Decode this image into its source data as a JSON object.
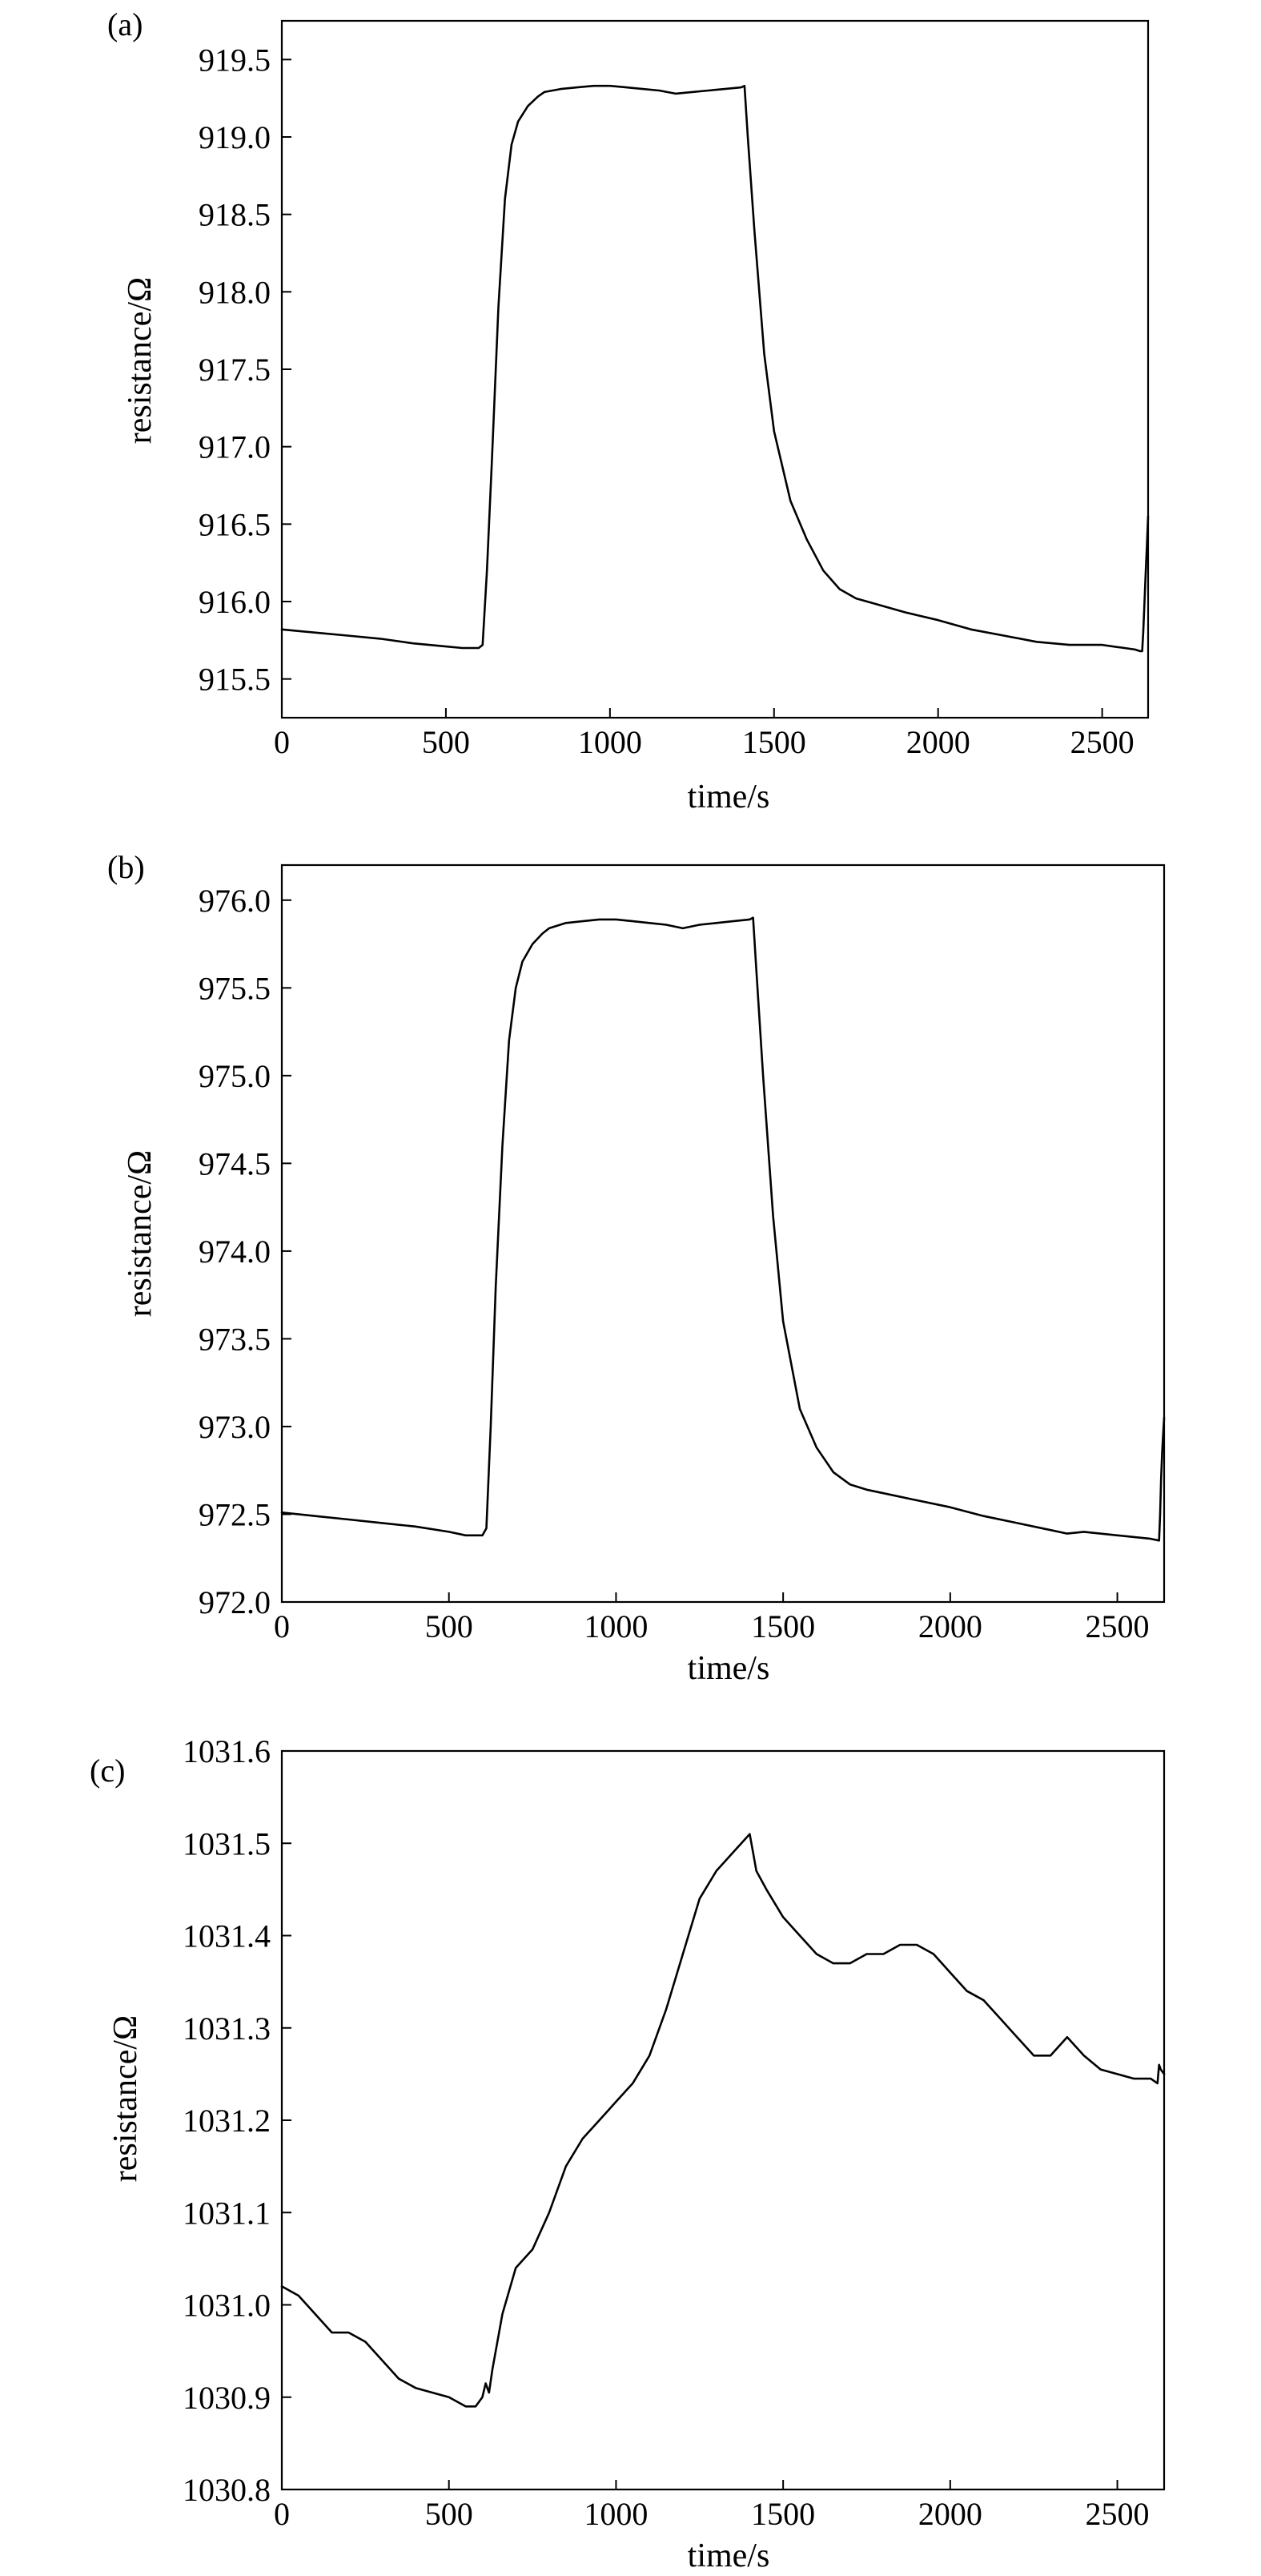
{
  "chart_data": [
    {
      "type": "line",
      "panel_label": "(a)",
      "xlabel": "time/s",
      "ylabel": "resistance/Ω",
      "xlim": [
        0,
        2640
      ],
      "ylim": [
        915.25,
        919.75
      ],
      "xticks": [
        0,
        500,
        1000,
        1500,
        2000,
        2500
      ],
      "yticks": [
        915.5,
        916.0,
        916.5,
        917.0,
        917.5,
        918.0,
        918.5,
        919.0,
        919.5
      ],
      "tick_decimals": 1,
      "grid": false,
      "series": [
        {
          "color": "#000000",
          "x": [
            0,
            100,
            200,
            300,
            400,
            500,
            550,
            600,
            612,
            625,
            640,
            660,
            680,
            700,
            720,
            750,
            780,
            800,
            850,
            900,
            950,
            1000,
            1050,
            1100,
            1150,
            1200,
            1250,
            1300,
            1350,
            1400,
            1410,
            1420,
            1440,
            1470,
            1500,
            1550,
            1600,
            1650,
            1700,
            1750,
            1800,
            1900,
            2000,
            2100,
            2200,
            2300,
            2400,
            2500,
            2600,
            2615,
            2622,
            2625,
            2628,
            2631,
            2634,
            2636,
            2638,
            2640
          ],
          "y": [
            915.82,
            915.8,
            915.78,
            915.76,
            915.73,
            915.71,
            915.7,
            915.7,
            915.72,
            916.2,
            916.9,
            917.9,
            918.6,
            918.95,
            919.1,
            919.2,
            919.26,
            919.29,
            919.31,
            919.32,
            919.33,
            919.33,
            919.32,
            919.31,
            919.3,
            919.28,
            919.29,
            919.3,
            919.31,
            919.32,
            919.33,
            919.0,
            918.4,
            917.6,
            917.1,
            916.65,
            916.4,
            916.2,
            916.08,
            916.02,
            915.99,
            915.93,
            915.88,
            915.82,
            915.78,
            915.74,
            915.72,
            915.72,
            915.69,
            915.68,
            915.68,
            915.8,
            915.95,
            916.1,
            916.25,
            916.35,
            916.45,
            916.55
          ]
        }
      ]
    },
    {
      "type": "line",
      "panel_label": "(b)",
      "xlabel": "time/s",
      "ylabel": "resistance/Ω",
      "xlim": [
        0,
        2640
      ],
      "ylim": [
        972.0,
        976.2
      ],
      "xticks": [
        0,
        500,
        1000,
        1500,
        2000,
        2500
      ],
      "yticks": [
        972.0,
        972.5,
        973.0,
        973.5,
        974.0,
        974.5,
        975.0,
        975.5,
        976.0
      ],
      "tick_decimals": 1,
      "grid": false,
      "series": [
        {
          "color": "#000000",
          "x": [
            0,
            100,
            200,
            300,
            400,
            500,
            550,
            600,
            612,
            625,
            640,
            660,
            680,
            700,
            720,
            750,
            780,
            800,
            850,
            900,
            950,
            1000,
            1050,
            1100,
            1150,
            1200,
            1250,
            1300,
            1350,
            1400,
            1410,
            1420,
            1440,
            1470,
            1500,
            1550,
            1600,
            1650,
            1700,
            1750,
            1800,
            1900,
            2000,
            2100,
            2200,
            2300,
            2350,
            2400,
            2500,
            2600,
            2625,
            2628,
            2631,
            2634,
            2637,
            2640
          ],
          "y": [
            972.51,
            972.49,
            972.47,
            972.45,
            972.43,
            972.4,
            972.38,
            972.38,
            972.42,
            973.0,
            973.8,
            974.6,
            975.2,
            975.5,
            975.65,
            975.75,
            975.81,
            975.84,
            975.87,
            975.88,
            975.89,
            975.89,
            975.88,
            975.87,
            975.86,
            975.84,
            975.86,
            975.87,
            975.88,
            975.89,
            975.9,
            975.6,
            975.0,
            974.2,
            973.6,
            973.1,
            972.88,
            972.74,
            972.67,
            972.64,
            972.62,
            972.58,
            972.54,
            972.49,
            972.45,
            972.41,
            972.39,
            972.4,
            972.38,
            972.36,
            972.35,
            972.5,
            972.7,
            972.85,
            972.95,
            973.05
          ]
        }
      ]
    },
    {
      "type": "line",
      "panel_label": "(c)",
      "xlabel": "time/s",
      "ylabel": "resistance/Ω",
      "xlim": [
        0,
        2640
      ],
      "ylim": [
        1030.8,
        1031.6
      ],
      "xticks": [
        0,
        500,
        1000,
        1500,
        2000,
        2500
      ],
      "yticks": [
        1030.8,
        1030.9,
        1031.0,
        1031.1,
        1031.2,
        1031.3,
        1031.4,
        1031.5,
        1031.6
      ],
      "tick_decimals": 1,
      "grid": false,
      "series": [
        {
          "color": "#000000",
          "x": [
            0,
            50,
            100,
            150,
            200,
            250,
            300,
            350,
            400,
            450,
            500,
            550,
            580,
            600,
            610,
            620,
            630,
            660,
            700,
            750,
            800,
            850,
            900,
            950,
            1000,
            1050,
            1100,
            1150,
            1200,
            1250,
            1300,
            1350,
            1400,
            1410,
            1420,
            1450,
            1500,
            1550,
            1600,
            1650,
            1700,
            1750,
            1800,
            1850,
            1900,
            1950,
            2000,
            2050,
            2100,
            2150,
            2200,
            2250,
            2300,
            2350,
            2400,
            2450,
            2500,
            2550,
            2600,
            2620,
            2625,
            2630,
            2640
          ],
          "y": [
            1031.02,
            1031.01,
            1030.99,
            1030.97,
            1030.97,
            1030.96,
            1030.94,
            1030.92,
            1030.91,
            1030.905,
            1030.9,
            1030.89,
            1030.89,
            1030.9,
            1030.915,
            1030.905,
            1030.93,
            1030.99,
            1031.04,
            1031.06,
            1031.1,
            1031.15,
            1031.18,
            1031.2,
            1031.22,
            1031.24,
            1031.27,
            1031.32,
            1031.38,
            1031.44,
            1031.47,
            1031.49,
            1031.51,
            1031.49,
            1031.47,
            1031.45,
            1031.42,
            1031.4,
            1031.38,
            1031.37,
            1031.37,
            1031.38,
            1031.38,
            1031.39,
            1031.39,
            1031.38,
            1031.36,
            1031.34,
            1031.33,
            1031.31,
            1031.29,
            1031.27,
            1031.27,
            1031.29,
            1031.27,
            1031.255,
            1031.25,
            1031.245,
            1031.245,
            1031.24,
            1031.26,
            1031.255,
            1031.25
          ]
        }
      ]
    }
  ]
}
